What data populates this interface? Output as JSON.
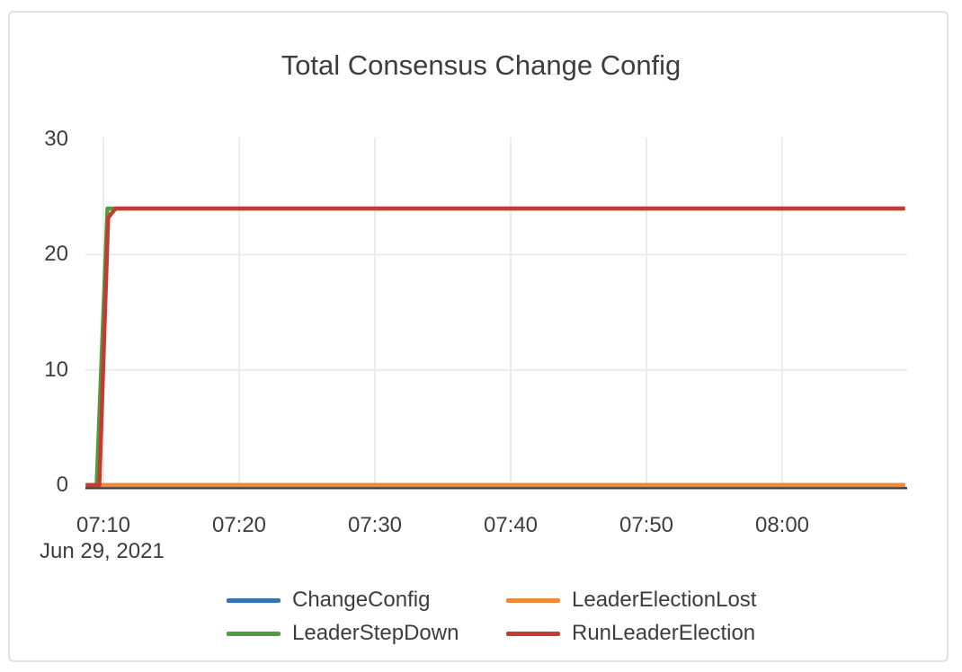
{
  "card": {
    "background": "#ffffff",
    "border_color": "#e2e2e2"
  },
  "chart_data": {
    "type": "line",
    "title": "Total Consensus Change Config",
    "x_axis": {
      "date_label": "Jun 29, 2021",
      "minutes_are_after": "07:00",
      "range_minutes": [
        8.7,
        69.05
      ],
      "ticks": [
        {
          "label": "07:10",
          "minute": 10
        },
        {
          "label": "07:20",
          "minute": 20
        },
        {
          "label": "07:30",
          "minute": 30
        },
        {
          "label": "07:40",
          "minute": 40
        },
        {
          "label": "07:50",
          "minute": 50
        },
        {
          "label": "08:00",
          "minute": 60
        }
      ]
    },
    "y_axis": {
      "range": [
        0,
        30
      ],
      "tick_labels": [
        "0",
        "10",
        "20",
        "30"
      ],
      "tick_values": [
        0,
        10,
        20,
        30
      ]
    },
    "grid": {
      "color": "#ececec",
      "horizontal_values": [
        10,
        20
      ],
      "vertical_at_ticks": true
    },
    "axis_line_color": "#3c3c3c",
    "plateau_value": 24,
    "series": [
      {
        "name": "ChangeConfig",
        "color": "#3274B5",
        "points": [
          [
            8.7,
            0
          ],
          [
            69.05,
            0
          ]
        ]
      },
      {
        "name": "LeaderElectionLost",
        "color": "#EC8A3B",
        "points": [
          [
            8.7,
            0
          ],
          [
            69.05,
            0
          ]
        ]
      },
      {
        "name": "LeaderStepDown",
        "color": "#4F9D3C",
        "points": [
          [
            8.7,
            0
          ],
          [
            9.5,
            0
          ],
          [
            10.3,
            24
          ],
          [
            69.05,
            24
          ]
        ]
      },
      {
        "name": "RunLeaderElection",
        "color": "#C33B32",
        "points": [
          [
            8.7,
            0
          ],
          [
            9.7,
            0
          ],
          [
            10.35,
            23.2
          ],
          [
            10.9,
            24
          ],
          [
            69.05,
            24
          ]
        ]
      }
    ],
    "legend": {
      "position": "bottom",
      "columns": 2,
      "entries": [
        {
          "label": "ChangeConfig",
          "color": "#3274B5"
        },
        {
          "label": "LeaderStepDown",
          "color": "#4F9D3C"
        },
        {
          "label": "LeaderElectionLost",
          "color": "#EC8A3B"
        },
        {
          "label": "RunLeaderElection",
          "color": "#C33B32"
        }
      ]
    }
  }
}
